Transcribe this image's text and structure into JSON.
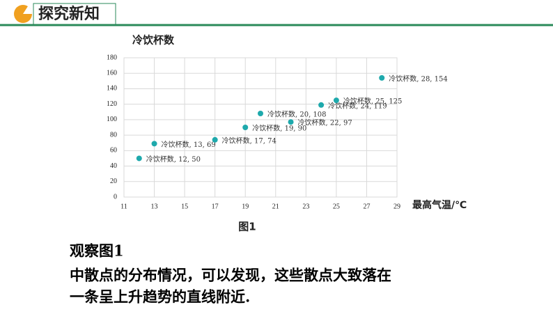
{
  "header": {
    "title": "探究新知"
  },
  "chart_data": {
    "type": "scatter",
    "y_label": "冷饮杯数",
    "x_label": "最高气温/℃",
    "x": [
      12,
      13,
      17,
      19,
      20,
      22,
      24,
      25,
      28
    ],
    "series": [
      {
        "name": "冷饮杯数",
        "color": "#1ea9ac",
        "values": [
          50,
          69,
          74,
          90,
          108,
          97,
          119,
          125,
          154
        ],
        "value_labels": [
          "冷饮杯数, 12, 50",
          "冷饮杯数, 13, 69",
          "冷饮杯数, 17, 74",
          "冷饮杯数, 19, 90",
          "冷饮杯数, 20, 108",
          "冷饮杯数, 22, 97",
          "冷饮杯数, 24, 119",
          "冷饮杯数, 25, 125",
          "冷饮杯数, 28, 154"
        ]
      }
    ],
    "xlim": [
      11,
      29
    ],
    "xticks": [
      11,
      13,
      15,
      17,
      19,
      21,
      23,
      25,
      27,
      29
    ],
    "ylim": [
      0,
      180
    ],
    "yticks": [
      0,
      20,
      40,
      60,
      80,
      100,
      120,
      140,
      160,
      180
    ],
    "grid": true,
    "caption": "图1"
  },
  "text": {
    "lines": [
      "观察图1",
      "中散点的分布情况，可以发现，这些散点大致落在",
      "一条呈上升趋势的直线附近."
    ]
  }
}
